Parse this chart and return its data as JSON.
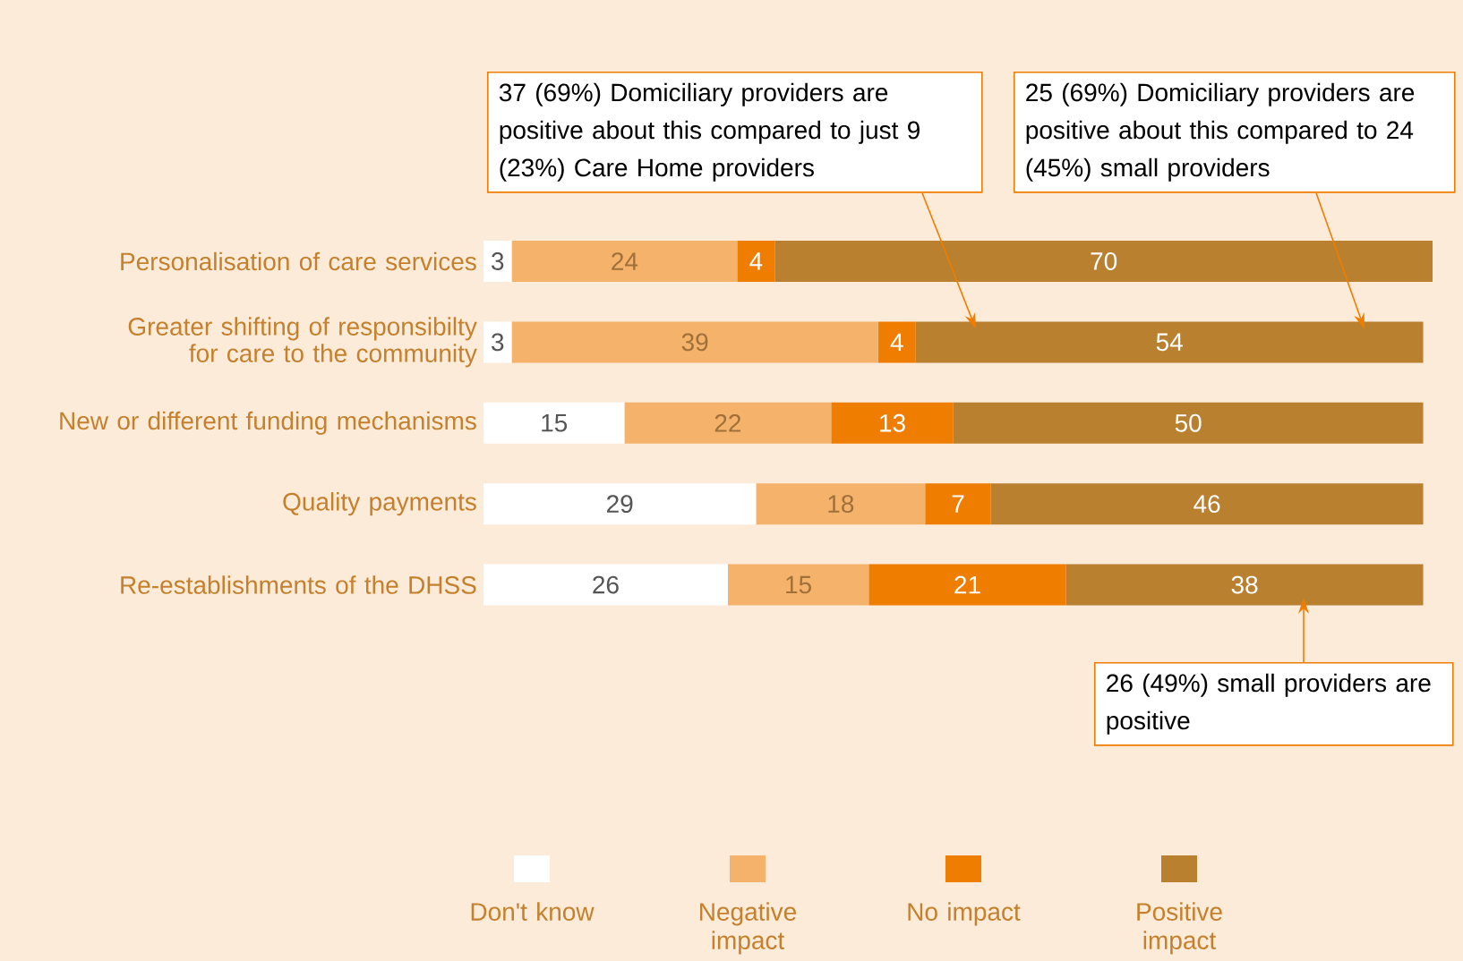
{
  "chart_data": {
    "type": "bar",
    "orientation": "horizontal",
    "stacked": true,
    "data_labels": true,
    "legend": "bottom",
    "categories": [
      "Personalisation of care services",
      "Greater shifting of responsibilty for care to the community",
      "New or different funding mechanisms",
      "Quality payments",
      "Re-establishments of the DHSS"
    ],
    "series": [
      {
        "name": "Don't know",
        "color": "#ffffff",
        "values": [
          3,
          3,
          15,
          29,
          26
        ]
      },
      {
        "name": "Negative impact",
        "color": "#f5b26b",
        "values": [
          24,
          39,
          22,
          18,
          15
        ]
      },
      {
        "name": "No impact",
        "color": "#ef7d00",
        "values": [
          4,
          4,
          13,
          7,
          21
        ]
      },
      {
        "name": "Positive impact",
        "color": "#b98030",
        "values": [
          70,
          54,
          50,
          46,
          38
        ]
      }
    ],
    "annotations": [
      "37 (69%) Domiciliary providers are positive about this compared to just 9 (23%) Care Home providers",
      "25 (69%) Domiciliary providers are positive about this compared to 24 (45%) small providers",
      "26 (49%) small providers are positive"
    ]
  }
}
